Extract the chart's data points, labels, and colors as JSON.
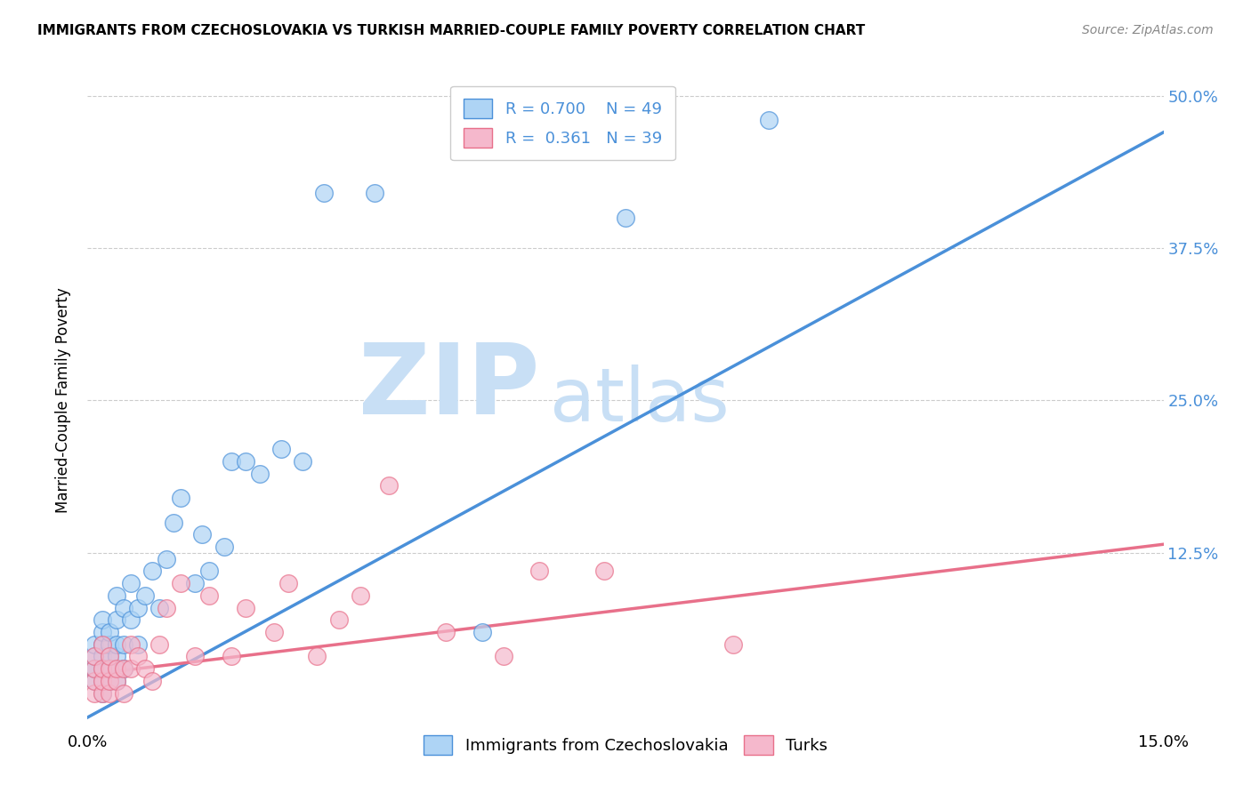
{
  "title": "IMMIGRANTS FROM CZECHOSLOVAKIA VS TURKISH MARRIED-COUPLE FAMILY POVERTY CORRELATION CHART",
  "source": "Source: ZipAtlas.com",
  "ylabel": "Married-Couple Family Poverty",
  "xmin": 0.0,
  "xmax": 0.15,
  "ymin": -0.02,
  "ymax": 0.52,
  "color_czech": "#aed4f5",
  "color_turk": "#f5b8cc",
  "line_color_czech": "#4a90d9",
  "line_color_turk": "#e8708a",
  "watermark_zip": "ZIP",
  "watermark_atlas": "atlas",
  "watermark_color": "#c8dff5",
  "czech_x": [
    0.001,
    0.001,
    0.001,
    0.001,
    0.001,
    0.002,
    0.002,
    0.002,
    0.002,
    0.002,
    0.002,
    0.002,
    0.003,
    0.003,
    0.003,
    0.003,
    0.003,
    0.004,
    0.004,
    0.004,
    0.004,
    0.004,
    0.005,
    0.005,
    0.005,
    0.006,
    0.006,
    0.007,
    0.007,
    0.008,
    0.009,
    0.01,
    0.011,
    0.012,
    0.013,
    0.015,
    0.016,
    0.017,
    0.019,
    0.02,
    0.022,
    0.024,
    0.027,
    0.03,
    0.033,
    0.04,
    0.055,
    0.075,
    0.095
  ],
  "czech_y": [
    0.02,
    0.03,
    0.03,
    0.04,
    0.05,
    0.01,
    0.02,
    0.03,
    0.04,
    0.05,
    0.06,
    0.07,
    0.02,
    0.03,
    0.04,
    0.05,
    0.06,
    0.02,
    0.04,
    0.05,
    0.07,
    0.09,
    0.03,
    0.05,
    0.08,
    0.07,
    0.1,
    0.05,
    0.08,
    0.09,
    0.11,
    0.08,
    0.12,
    0.15,
    0.17,
    0.1,
    0.14,
    0.11,
    0.13,
    0.2,
    0.2,
    0.19,
    0.21,
    0.2,
    0.42,
    0.42,
    0.06,
    0.4,
    0.48
  ],
  "turk_x": [
    0.001,
    0.001,
    0.001,
    0.001,
    0.002,
    0.002,
    0.002,
    0.002,
    0.003,
    0.003,
    0.003,
    0.003,
    0.004,
    0.004,
    0.005,
    0.005,
    0.006,
    0.006,
    0.007,
    0.008,
    0.009,
    0.01,
    0.011,
    0.013,
    0.015,
    0.017,
    0.02,
    0.022,
    0.026,
    0.028,
    0.032,
    0.035,
    0.038,
    0.042,
    0.05,
    0.058,
    0.063,
    0.072,
    0.09
  ],
  "turk_y": [
    0.01,
    0.02,
    0.03,
    0.04,
    0.01,
    0.02,
    0.03,
    0.05,
    0.01,
    0.02,
    0.03,
    0.04,
    0.02,
    0.03,
    0.01,
    0.03,
    0.03,
    0.05,
    0.04,
    0.03,
    0.02,
    0.05,
    0.08,
    0.1,
    0.04,
    0.09,
    0.04,
    0.08,
    0.06,
    0.1,
    0.04,
    0.07,
    0.09,
    0.18,
    0.06,
    0.04,
    0.11,
    0.11,
    0.05
  ],
  "czech_line_x": [
    0.0,
    0.15
  ],
  "czech_line_y": [
    -0.01,
    0.47
  ],
  "turk_line_x": [
    0.0,
    0.15
  ],
  "turk_line_y": [
    0.025,
    0.132
  ]
}
